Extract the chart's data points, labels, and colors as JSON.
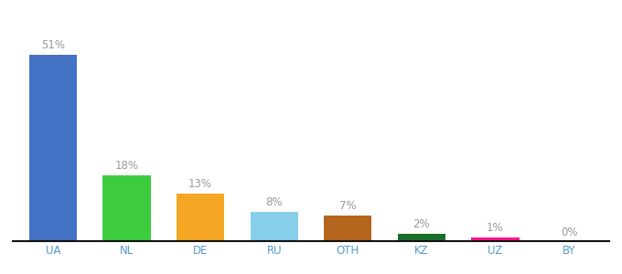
{
  "categories": [
    "UA",
    "NL",
    "DE",
    "RU",
    "OTH",
    "KZ",
    "UZ",
    "BY"
  ],
  "values": [
    51,
    18,
    13,
    8,
    7,
    2,
    1,
    0
  ],
  "labels": [
    "51%",
    "18%",
    "13%",
    "8%",
    "7%",
    "2%",
    "1%",
    "0%"
  ],
  "bar_colors": [
    "#4472c4",
    "#3dcc3d",
    "#f5a623",
    "#87ceeb",
    "#b5651d",
    "#1a6e2a",
    "#ff1493",
    "#dddddd"
  ],
  "background_color": "#ffffff",
  "ylim": [
    0,
    60
  ],
  "label_fontsize": 8.5,
  "tick_fontsize": 8.5,
  "tick_color": "#5599cc",
  "label_color": "#999999",
  "bar_width": 0.65
}
